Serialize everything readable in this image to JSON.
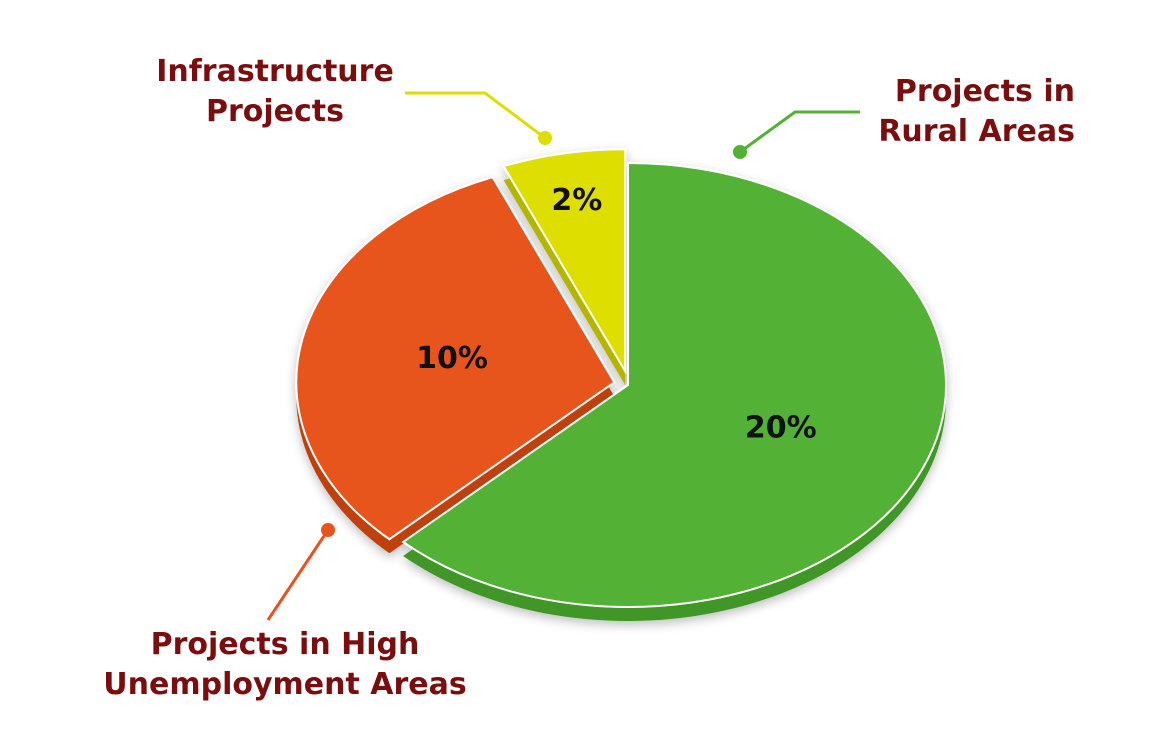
{
  "chart_data": {
    "type": "pie",
    "categories": [
      "Projects in Rural Areas",
      "Projects in High Unemployment Areas",
      "Infrastructure Projects"
    ],
    "values": [
      20,
      10,
      2
    ],
    "value_labels": [
      "20%",
      "10%",
      "2%"
    ],
    "colors": [
      "#52b234",
      "#e8541e",
      "#dede00"
    ],
    "side_colors": [
      "#3f9626",
      "#c0410f",
      "#b5b500"
    ]
  }
}
